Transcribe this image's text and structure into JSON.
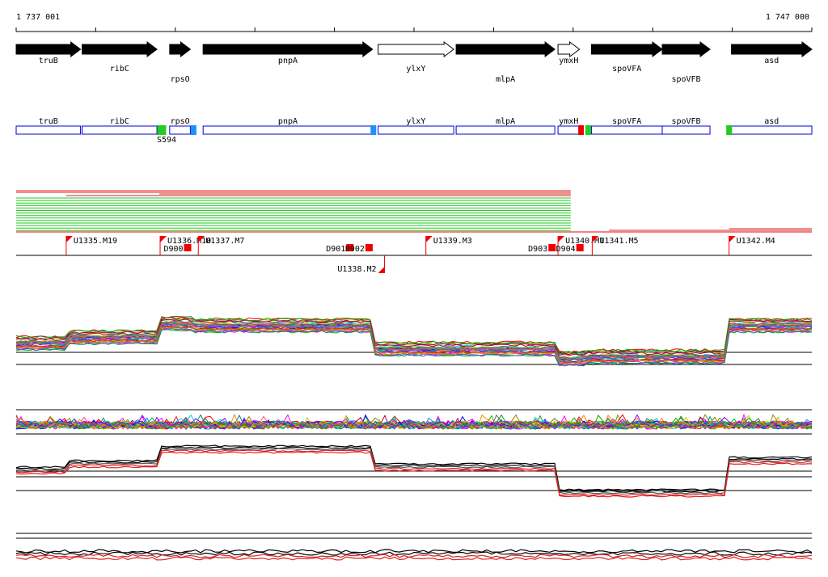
{
  "ruler": {
    "start_label": "1 737 001",
    "end_label": "1 747 000",
    "start": 1737001,
    "end": 1747000
  },
  "colors": {
    "gene_fill": "#000000",
    "hollow_fill": "#ffffff",
    "track_box": "#0000cc",
    "marker_green": "#22cc22",
    "marker_blue": "#1e90ff",
    "marker_red": "#ee0000",
    "read_red": "#dd2222",
    "read_green": "#22cc22",
    "flag_red": "#ee0000"
  },
  "genes": [
    {
      "name": "truB",
      "start": 1737001,
      "end": 1737810,
      "strand": "+",
      "filled": true,
      "label_row": 1
    },
    {
      "name": "ribC",
      "start": 1737830,
      "end": 1738770,
      "strand": "+",
      "filled": true,
      "label_row": 2
    },
    {
      "name": "rpsO",
      "start": 1738930,
      "end": 1739190,
      "strand": "+",
      "filled": true,
      "label_row": 3
    },
    {
      "name": "pnpA",
      "start": 1739350,
      "end": 1741480,
      "strand": "+",
      "filled": true,
      "label_row": 1
    },
    {
      "name": "ylxY",
      "start": 1741550,
      "end": 1742500,
      "strand": "+",
      "filled": false,
      "label_row": 2
    },
    {
      "name": "mlpA",
      "start": 1742530,
      "end": 1743770,
      "strand": "+",
      "filled": true,
      "label_row": 3
    },
    {
      "name": "ymxH",
      "start": 1743810,
      "end": 1744080,
      "strand": "+",
      "filled": false,
      "label_row": 1
    },
    {
      "name": "spoVFA",
      "start": 1744230,
      "end": 1745120,
      "strand": "+",
      "filled": true,
      "label_row": 2
    },
    {
      "name": "spoVFB",
      "start": 1745120,
      "end": 1745720,
      "strand": "+",
      "filled": true,
      "label_row": 3
    },
    {
      "name": "asd",
      "start": 1745990,
      "end": 1747000,
      "strand": "+",
      "filled": true,
      "label_row": 1
    }
  ],
  "track_markers": [
    {
      "label": "S594",
      "pos": 1738830,
      "color": "green"
    },
    {
      "label": "",
      "pos": 1739230,
      "color": "blue"
    },
    {
      "label": "",
      "pos": 1741490,
      "color": "blue"
    },
    {
      "label": "",
      "pos": 1744100,
      "color": "red"
    },
    {
      "label": "",
      "pos": 1744190,
      "color": "green"
    },
    {
      "label": "",
      "pos": 1745960,
      "color": "green"
    }
  ],
  "reads": {
    "red": [
      {
        "start": 1737001,
        "end": 1743970
      },
      {
        "start": 1737001,
        "end": 1743970
      },
      {
        "start": 1737630,
        "end": 1743970
      },
      {
        "start": 1738800,
        "end": 1743970
      },
      {
        "start": 1739300,
        "end": 1741450
      },
      {
        "start": 1744450,
        "end": 1747000
      },
      {
        "start": 1745960,
        "end": 1747000
      }
    ],
    "green_count": 14,
    "green_start": 1737001,
    "green_end": 1743970
  },
  "transcription_units": [
    {
      "label": "U1335.M19",
      "pos": 1737630,
      "row": 0
    },
    {
      "label": "U1336.M10",
      "pos": 1738810,
      "row": 0
    },
    {
      "label": "U1337.M7",
      "pos": 1739290,
      "row": 0
    },
    {
      "label": "U1338.M2",
      "pos": 1741630,
      "row": 1
    },
    {
      "label": "U1339.M3",
      "pos": 1742150,
      "row": 0
    },
    {
      "label": "U1340.M1",
      "pos": 1743810,
      "row": 0
    },
    {
      "label": "U1341.M5",
      "pos": 1744240,
      "row": 0
    },
    {
      "label": "U1342.M4",
      "pos": 1745960,
      "row": 0
    }
  ],
  "downregulation": [
    {
      "label": "D900",
      "pos": 1739110
    },
    {
      "label": "D901",
      "pos": 1741150
    },
    {
      "label": "D902",
      "pos": 1741390
    },
    {
      "label": "D903",
      "pos": 1743690
    },
    {
      "label": "D904",
      "pos": 1744040
    }
  ]
}
